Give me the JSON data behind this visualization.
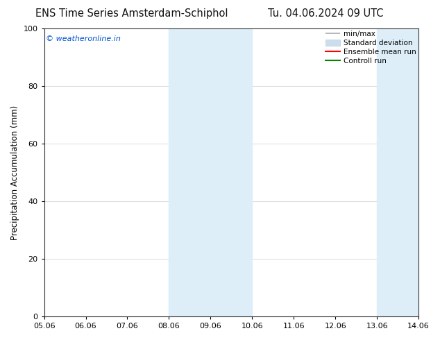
{
  "title_left": "ENS Time Series Amsterdam-Schiphol",
  "title_right": "Tu. 04.06.2024 09 UTC",
  "ylabel": "Precipitation Accumulation (mm)",
  "watermark": "© weatheronline.in",
  "watermark_color": "#0055cc",
  "ylim": [
    0,
    100
  ],
  "xlim": [
    0,
    9
  ],
  "xtick_positions": [
    0,
    1,
    2,
    3,
    4,
    5,
    6,
    7,
    8,
    9
  ],
  "xtick_labels": [
    "05.06",
    "06.06",
    "07.06",
    "08.06",
    "09.06",
    "10.06",
    "11.06",
    "12.06",
    "13.06",
    "14.06"
  ],
  "ytick_values": [
    0,
    20,
    40,
    60,
    80,
    100
  ],
  "background_color": "#ffffff",
  "plot_bg_color": "#ffffff",
  "shade_regions": [
    {
      "xstart": 3.0,
      "xend": 4.0,
      "color": "#ddeef8"
    },
    {
      "xstart": 4.0,
      "xend": 5.0,
      "color": "#ddeef8"
    },
    {
      "xstart": 8.0,
      "xend": 9.0,
      "color": "#ddeef8"
    }
  ],
  "legend_items": [
    {
      "label": "min/max",
      "color": "#aaaaaa",
      "lw": 1.2,
      "style": "minmax"
    },
    {
      "label": "Standard deviation",
      "color": "#ccddee",
      "lw": 8,
      "style": "box"
    },
    {
      "label": "Ensemble mean run",
      "color": "#ff0000",
      "lw": 1.5,
      "style": "line"
    },
    {
      "label": "Controll run",
      "color": "#008800",
      "lw": 1.5,
      "style": "line"
    }
  ],
  "title_fontsize": 10.5,
  "label_fontsize": 8.5,
  "tick_fontsize": 8,
  "legend_fontsize": 7.5,
  "watermark_fontsize": 8,
  "grid_color": "#cccccc"
}
